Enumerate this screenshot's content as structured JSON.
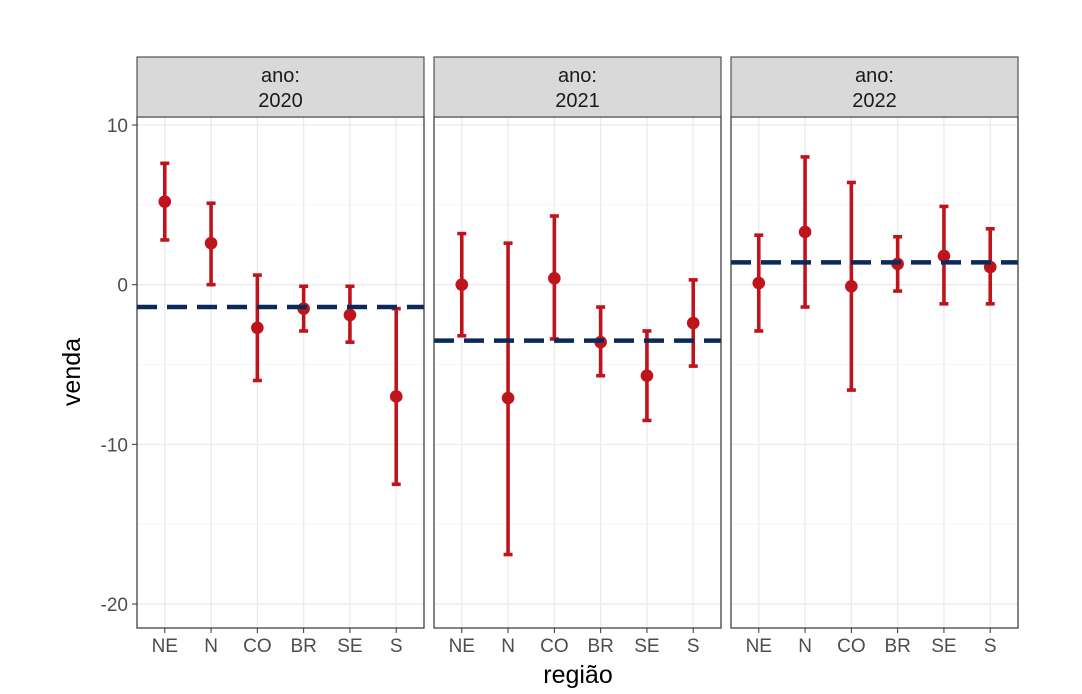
{
  "chart_data": {
    "type": "scatter",
    "geometry": "point-with-errorbars",
    "xlabel": "região",
    "ylabel": "venda",
    "ylim": [
      -21.5,
      10.5
    ],
    "yticks": [
      10,
      0,
      -10,
      -20
    ],
    "grid": true,
    "categories": [
      "NE",
      "N",
      "CO",
      "BR",
      "SE",
      "S"
    ],
    "colors": {
      "point": "#c0141d",
      "reference_line": "#0b2a5a"
    },
    "facets": [
      {
        "strip_line1": "ano:",
        "strip_line2": "2020",
        "reference_line": -1.4,
        "points": [
          {
            "category": "NE",
            "y": 5.2,
            "ymin": 2.8,
            "ymax": 7.6
          },
          {
            "category": "N",
            "y": 2.6,
            "ymin": 0.0,
            "ymax": 5.1
          },
          {
            "category": "CO",
            "y": -2.7,
            "ymin": -6.0,
            "ymax": 0.6
          },
          {
            "category": "BR",
            "y": -1.5,
            "ymin": -2.9,
            "ymax": -0.1
          },
          {
            "category": "SE",
            "y": -1.9,
            "ymin": -3.6,
            "ymax": -0.1
          },
          {
            "category": "S",
            "y": -7.0,
            "ymin": -12.5,
            "ymax": -1.5
          }
        ]
      },
      {
        "strip_line1": "ano:",
        "strip_line2": "2021",
        "reference_line": -3.5,
        "points": [
          {
            "category": "NE",
            "y": 0.0,
            "ymin": -3.2,
            "ymax": 3.2
          },
          {
            "category": "N",
            "y": -7.1,
            "ymin": -16.9,
            "ymax": 2.6
          },
          {
            "category": "CO",
            "y": 0.4,
            "ymin": -3.4,
            "ymax": 4.3
          },
          {
            "category": "BR",
            "y": -3.6,
            "ymin": -5.7,
            "ymax": -1.4
          },
          {
            "category": "SE",
            "y": -5.7,
            "ymin": -8.5,
            "ymax": -2.9
          },
          {
            "category": "S",
            "y": -2.4,
            "ymin": -5.1,
            "ymax": 0.3
          }
        ]
      },
      {
        "strip_line1": "ano:",
        "strip_line2": "2022",
        "reference_line": 1.4,
        "points": [
          {
            "category": "NE",
            "y": 0.1,
            "ymin": -2.9,
            "ymax": 3.1
          },
          {
            "category": "N",
            "y": 3.3,
            "ymin": -1.4,
            "ymax": 8.0
          },
          {
            "category": "CO",
            "y": -0.1,
            "ymin": -6.6,
            "ymax": 6.4
          },
          {
            "category": "BR",
            "y": 1.3,
            "ymin": -0.4,
            "ymax": 3.0
          },
          {
            "category": "SE",
            "y": 1.8,
            "ymin": -1.2,
            "ymax": 4.9
          },
          {
            "category": "S",
            "y": 1.1,
            "ymin": -1.2,
            "ymax": 3.5
          }
        ]
      }
    ]
  }
}
